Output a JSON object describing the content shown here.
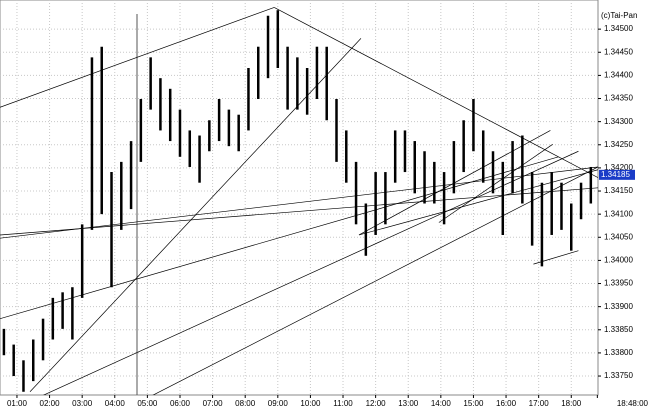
{
  "chart_data": {
    "type": "range-bar",
    "watermark": "(c)Tai-Pan",
    "color": "#000000",
    "trendline_color": "#000000",
    "last_color": "#1a3cc8",
    "grid": true,
    "xlim": [
      0.48,
      18.82
    ],
    "ylim": [
      1.33709,
      1.34563
    ],
    "xticks": [
      {
        "value": 1,
        "label": "01:00"
      },
      {
        "value": 2,
        "label": "02:00"
      },
      {
        "value": 3,
        "label": "03:00"
      },
      {
        "value": 4,
        "label": "04:00"
      },
      {
        "value": 5,
        "label": "05:00"
      },
      {
        "value": 6,
        "label": "06:00"
      },
      {
        "value": 7,
        "label": "07:00"
      },
      {
        "value": 8,
        "label": "08:00"
      },
      {
        "value": 9,
        "label": "09:00"
      },
      {
        "value": 10,
        "label": "10:00"
      },
      {
        "value": 11,
        "label": "11:00"
      },
      {
        "value": 12,
        "label": "12:00"
      },
      {
        "value": 13,
        "label": "13:00"
      },
      {
        "value": 14,
        "label": "14:00"
      },
      {
        "value": 15,
        "label": "15:00"
      },
      {
        "value": 16,
        "label": "16:00"
      },
      {
        "value": 17,
        "label": "17:00"
      },
      {
        "value": 18,
        "label": "18:00"
      },
      {
        "value": 18.8,
        "label": "18:48:00"
      }
    ],
    "yticks": [
      {
        "value": 1.3375,
        "label": "1.33750"
      },
      {
        "value": 1.338,
        "label": "1.33800"
      },
      {
        "value": 1.3385,
        "label": "1.33850"
      },
      {
        "value": 1.339,
        "label": "1.33900"
      },
      {
        "value": 1.3395,
        "label": "1.33950"
      },
      {
        "value": 1.34,
        "label": "1.34000"
      },
      {
        "value": 1.3405,
        "label": "1.34050"
      },
      {
        "value": 1.341,
        "label": "1.34100"
      },
      {
        "value": 1.3415,
        "label": "1.34150"
      },
      {
        "value": 1.342,
        "label": "1.34200"
      },
      {
        "value": 1.3425,
        "label": "1.34250"
      },
      {
        "value": 1.343,
        "label": "1.34300"
      },
      {
        "value": 1.3435,
        "label": "1.34350"
      },
      {
        "value": 1.344,
        "label": "1.34400"
      },
      {
        "value": 1.3445,
        "label": "1.34450"
      },
      {
        "value": 1.345,
        "label": "1.34500"
      }
    ],
    "last_value": 1.34185,
    "last_value_label": "1.34185",
    "x": [
      0.6,
      0.9,
      1.2,
      1.5,
      1.8,
      2.1,
      2.4,
      2.7,
      3.0,
      3.3,
      3.6,
      3.9,
      4.2,
      4.5,
      4.8,
      5.1,
      5.4,
      5.7,
      6.0,
      6.3,
      6.6,
      6.9,
      7.2,
      7.5,
      7.8,
      8.1,
      8.4,
      8.7,
      9.0,
      9.3,
      9.6,
      9.9,
      10.2,
      10.5,
      10.8,
      11.1,
      11.4,
      11.7,
      12.0,
      12.3,
      12.6,
      12.9,
      13.2,
      13.5,
      13.8,
      14.1,
      14.4,
      14.7,
      15.0,
      15.3,
      15.6,
      15.9,
      16.2,
      16.5,
      16.8,
      17.1,
      17.4,
      17.7,
      18.0,
      18.3,
      18.6
    ],
    "high": [
      1.33852,
      1.33818,
      1.33784,
      1.33829,
      1.33874,
      1.33919,
      1.33931,
      1.33942,
      1.34078,
      1.34439,
      1.34462,
      1.34191,
      1.34213,
      1.34258,
      1.34349,
      1.34439,
      1.34394,
      1.34371,
      1.34326,
      1.34281,
      1.3427,
      1.34303,
      1.34349,
      1.34326,
      1.34315,
      1.34416,
      1.34462,
      1.34529,
      1.34541,
      1.34462,
      1.34439,
      1.34416,
      1.34462,
      1.34462,
      1.34349,
      1.34281,
      1.34213,
      1.34123,
      1.34191,
      1.34191,
      1.34281,
      1.34281,
      1.34258,
      1.34236,
      1.34213,
      1.34191,
      1.34258,
      1.34303,
      1.34349,
      1.34281,
      1.34236,
      1.34213,
      1.34258,
      1.3427,
      1.34191,
      1.34168,
      1.34191,
      1.34168,
      1.34123,
      1.34168,
      1.34202
    ],
    "low": [
      1.33795,
      1.3375,
      1.33716,
      1.33739,
      1.33784,
      1.33829,
      1.33852,
      1.33829,
      1.33919,
      1.34066,
      1.341,
      1.33942,
      1.34066,
      1.34111,
      1.34213,
      1.34326,
      1.34281,
      1.34258,
      1.34224,
      1.34202,
      1.34168,
      1.34236,
      1.34258,
      1.34247,
      1.34236,
      1.34281,
      1.34349,
      1.34394,
      1.34416,
      1.34326,
      1.34326,
      1.34315,
      1.34349,
      1.34303,
      1.34213,
      1.34168,
      1.34078,
      1.3401,
      1.34055,
      1.34078,
      1.34168,
      1.34191,
      1.34145,
      1.34123,
      1.34123,
      1.34078,
      1.34145,
      1.34191,
      1.34236,
      1.34168,
      1.34145,
      1.34055,
      1.34145,
      1.34123,
      1.34032,
      1.33987,
      1.34055,
      1.34066,
      1.34021,
      1.34089,
      1.34123
    ],
    "trendlines": [
      [
        0.48,
        1.34331,
        8.89,
        1.34547
      ],
      [
        8.89,
        1.34547,
        18.82,
        1.34179
      ],
      [
        5.07,
        1.33705,
        18.82,
        1.34202
      ],
      [
        1.4,
        1.33716,
        11.55,
        1.3448
      ],
      [
        0.48,
        1.34048,
        18.82,
        1.34202
      ],
      [
        0.48,
        1.33874,
        17.61,
        1.34224
      ],
      [
        1.7,
        1.33705,
        18.22,
        1.34236
      ],
      [
        11.49,
        1.34055,
        17.36,
        1.34281
      ],
      [
        11.49,
        1.34055,
        18.82,
        1.34196
      ],
      [
        0.48,
        1.34055,
        18.82,
        1.34157
      ],
      [
        13.94,
        1.34082,
        17.43,
        1.34251
      ],
      [
        16.84,
        1.33992,
        18.22,
        1.34021
      ]
    ]
  }
}
